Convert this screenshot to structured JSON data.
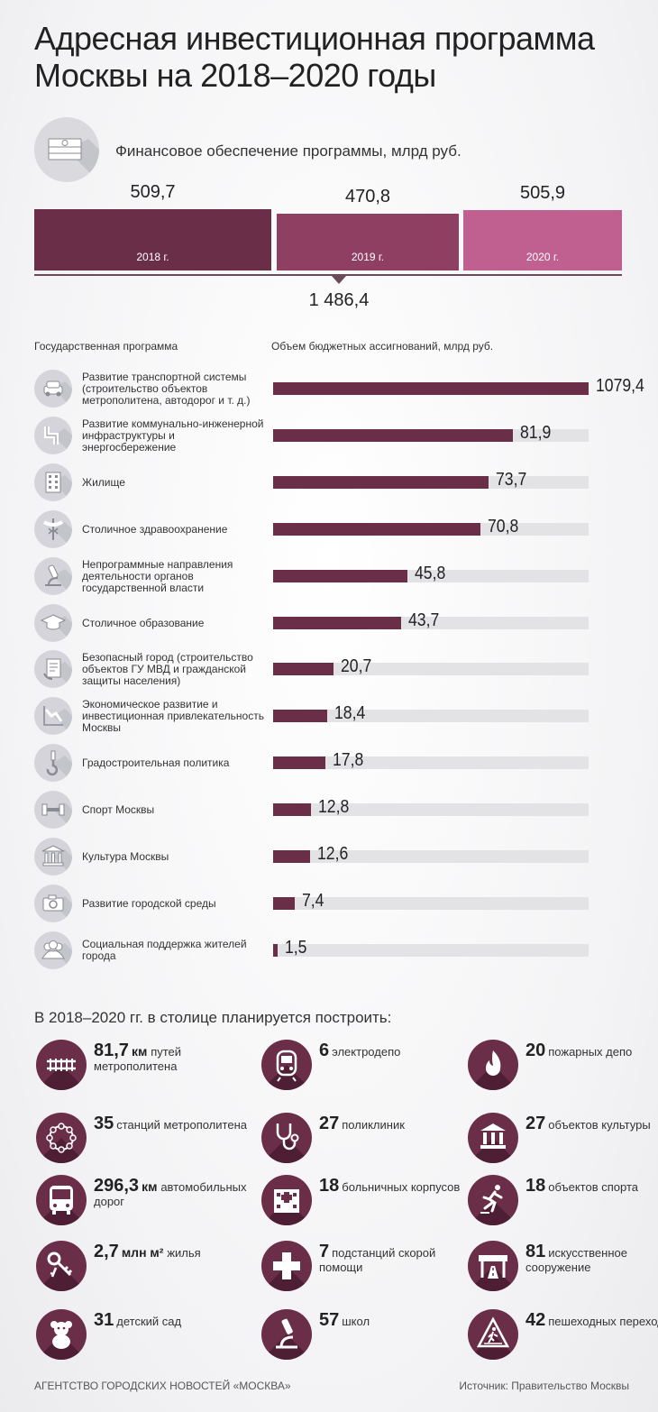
{
  "title": "Адресная инвестиционная программа Москвы на 2018–2020 годы",
  "finance": {
    "title": "Финансовое обеспечение программы, млрд руб.",
    "icon": "money-stack-icon",
    "total": "1 486,4"
  },
  "colors": {
    "accent": "#6a2e48",
    "y2019": "#8e3f62",
    "y2020": "#c06090",
    "track": "#e3e3e6"
  },
  "programs_header": {
    "left": "Государственная программа",
    "right": "Объем бюджетных ассигнований, млрд руб."
  },
  "plan": {
    "title": "В 2018–2020 гг. в столице планируется построить:",
    "items": [
      {
        "num": "81,7",
        "unit": "км",
        "text": "путей метрополитена",
        "icon": "rail-track-icon"
      },
      {
        "num": "6",
        "unit": "",
        "text": "электродепо",
        "icon": "metro-train-icon"
      },
      {
        "num": "20",
        "unit": "",
        "text": "пожарных депо",
        "icon": "fire-icon"
      },
      {
        "num": "35",
        "unit": "",
        "text": "станций метрополитена",
        "icon": "metro-stations-ring-icon"
      },
      {
        "num": "27",
        "unit": "",
        "text": "поликлиник",
        "icon": "stethoscope-icon"
      },
      {
        "num": "27",
        "unit": "",
        "text": "объектов культуры",
        "icon": "museum-icon"
      },
      {
        "num": "296,3",
        "unit": "км",
        "text": "автомобильных дорог",
        "icon": "bus-icon"
      },
      {
        "num": "18",
        "unit": "",
        "text": "больничных корпусов",
        "icon": "hospital-icon"
      },
      {
        "num": "18",
        "unit": "",
        "text": "объектов спорта",
        "icon": "runner-icon"
      },
      {
        "num": "2,7",
        "unit": "млн м²",
        "text": "жилья",
        "icon": "keys-icon"
      },
      {
        "num": "7",
        "unit": "",
        "text": "подстанций скорой помощи",
        "icon": "medical-cross-icon"
      },
      {
        "num": "81",
        "unit": "",
        "text": "искусственное сооружение",
        "icon": "road-overpass-icon"
      },
      {
        "num": "31",
        "unit": "",
        "text": "детский сад",
        "icon": "teddy-bear-icon"
      },
      {
        "num": "57",
        "unit": "",
        "text": "школ",
        "icon": "microscope-icon"
      },
      {
        "num": "42",
        "unit": "",
        "text": "пешеходных перехода",
        "icon": "pedestrian-sign-icon"
      }
    ]
  },
  "footer": {
    "agency": "АГЕНТСТВО ГОРОДСКИХ НОВОСТЕЙ «МОСКВА»",
    "source": "Источник: Правительство Москвы"
  },
  "chart_data": [
    {
      "type": "bar",
      "title": "Финансовое обеспечение программы, млрд руб.",
      "categories": [
        "2018 г.",
        "2019 г.",
        "2020 г."
      ],
      "values": [
        509.7,
        470.8,
        505.9
      ],
      "labels": [
        "509,7",
        "470,8",
        "505,9"
      ],
      "total": 1486.4
    },
    {
      "type": "bar",
      "orientation": "horizontal",
      "ylabel": "Государственная программа",
      "xlabel": "Объем бюджетных ассигнований, млрд руб.",
      "categories": [
        "Развитие транспортной системы (строительство объектов метрополитена, автодорог и т. д.)",
        "Развитие коммунально-инженерной инфраструктуры и энергосбережение",
        "Жилище",
        "Столичное здравоохранение",
        "Непрограммные направления деятельности органов государственной власти",
        "Столичное образование",
        "Безопасный город (строительство объектов ГУ МВД и гражданской защиты населения)",
        "Экономическое развитие и инвестиционная привлекательность Москвы",
        "Градостроительная политика",
        "Спорт Москвы",
        "Культура Москвы",
        "Развитие городской среды",
        "Социальная поддержка жителей города"
      ],
      "values": [
        1079.4,
        81.9,
        73.7,
        70.8,
        45.8,
        43.7,
        20.7,
        18.4,
        17.8,
        12.8,
        12.6,
        7.4,
        1.5
      ],
      "labels": [
        "1079,4",
        "81,9",
        "73,7",
        "70,8",
        "45,8",
        "43,7",
        "20,7",
        "18,4",
        "17,8",
        "12,8",
        "12,6",
        "7,4",
        "1,5"
      ],
      "icons": [
        "car-icon",
        "pipe-icon",
        "building-icon",
        "caduceus-icon",
        "microscope-icon",
        "graduation-cap-icon",
        "document-icon",
        "trend-chart-icon",
        "crane-hook-icon",
        "dumbbell-icon",
        "museum-icon",
        "camera-icon",
        "people-icon"
      ],
      "scale_note": "broken scale: first bar extends full width"
    }
  ]
}
